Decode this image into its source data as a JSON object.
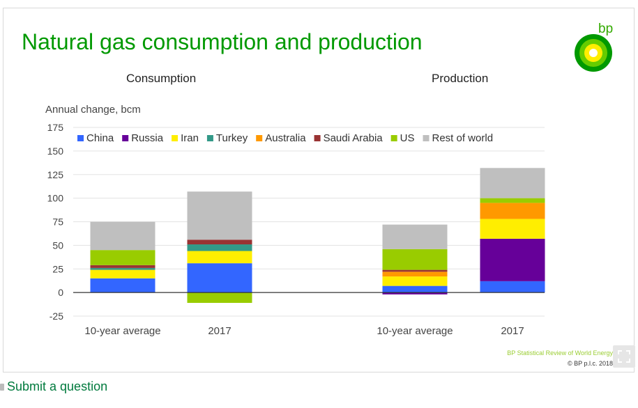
{
  "title": "Natural gas consumption and production",
  "y_axis_label": "Annual change, bcm",
  "logo_text": "bp",
  "source": "BP Statistical Review of World Energy",
  "copyright": "© BP p.l.c. 2018",
  "footer_link": "Submit a question",
  "colors": {
    "title": "#009900",
    "China": "#3366ff",
    "Russia": "#660099",
    "Iran": "#ffee00",
    "Turkey": "#339988",
    "Australia": "#ff9900",
    "Saudi Arabia": "#993333",
    "US": "#99cc00",
    "Rest of world": "#bfbfbf"
  },
  "chart_data": {
    "type": "stacked-bar",
    "ylim": [
      -25,
      175
    ],
    "yticks": [
      175,
      150,
      125,
      100,
      75,
      50,
      25,
      0,
      -25
    ],
    "legend": [
      "China",
      "Russia",
      "Iran",
      "Turkey",
      "Australia",
      "Saudi Arabia",
      "US",
      "Rest of world"
    ],
    "panels": [
      {
        "title": "Consumption",
        "categories": [
          "10-year average",
          "2017"
        ],
        "series": [
          {
            "name": "China",
            "values": [
              15,
              31
            ]
          },
          {
            "name": "Russia",
            "values": [
              0,
              0
            ]
          },
          {
            "name": "Iran",
            "values": [
              9,
              13
            ]
          },
          {
            "name": "Turkey",
            "values": [
              2,
              7
            ]
          },
          {
            "name": "Australia",
            "values": [
              0,
              0
            ]
          },
          {
            "name": "Saudi Arabia",
            "values": [
              3,
              5
            ]
          },
          {
            "name": "US",
            "values": [
              16,
              -11
            ]
          },
          {
            "name": "Rest of world",
            "values": [
              30,
              51
            ]
          }
        ]
      },
      {
        "title": "Production",
        "categories": [
          "10-year average",
          "2017"
        ],
        "series": [
          {
            "name": "China",
            "values": [
              7,
              12
            ]
          },
          {
            "name": "Russia",
            "values": [
              -2,
              45
            ]
          },
          {
            "name": "Iran",
            "values": [
              10,
              21
            ]
          },
          {
            "name": "Turkey",
            "values": [
              0,
              0
            ]
          },
          {
            "name": "Australia",
            "values": [
              5,
              17
            ]
          },
          {
            "name": "Saudi Arabia",
            "values": [
              2,
              0
            ]
          },
          {
            "name": "US",
            "values": [
              22,
              5
            ]
          },
          {
            "name": "Rest of world",
            "values": [
              26,
              32
            ]
          }
        ]
      }
    ]
  }
}
